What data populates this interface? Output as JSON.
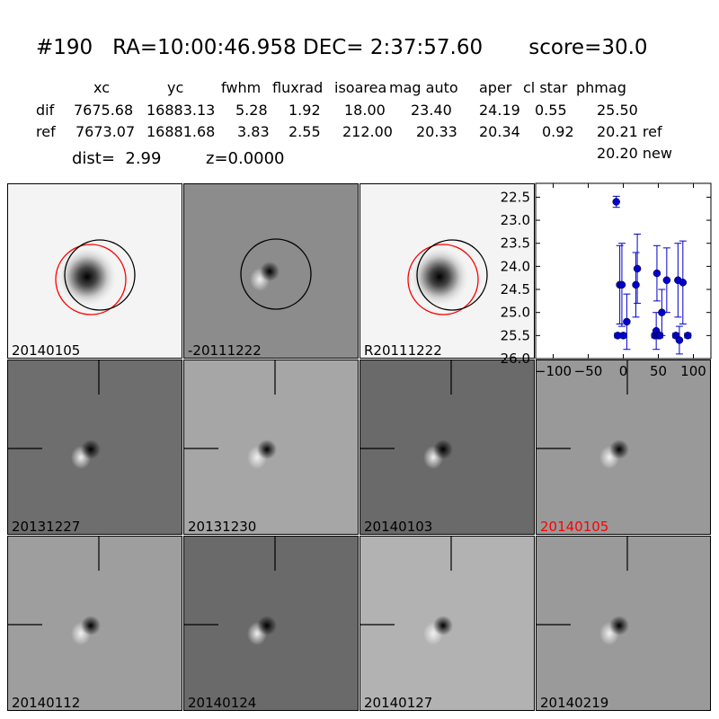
{
  "title": "#190   RA=10:00:46.958 DEC= 2:37:57.60       score=30.0",
  "table": {
    "headers": [
      "xc",
      "yc",
      "fwhm",
      "fluxrad",
      "isoarea",
      "mag auto",
      "aper",
      "cl star",
      "phmag"
    ],
    "rows": [
      {
        "label": "dif",
        "values": [
          "7675.68",
          "16883.13",
          "5.28",
          "1.92",
          "18.00",
          "23.40",
          "24.19",
          "0.55",
          "25.50"
        ]
      },
      {
        "label": "ref",
        "values": [
          "7673.07",
          "16881.68",
          "3.83",
          "2.55",
          "212.00",
          "20.33",
          "20.34",
          "0.92",
          "20.21 ref"
        ]
      }
    ],
    "extra": "20.20 new"
  },
  "dist": "dist=  2.99",
  "z": "z=0.0000",
  "top_panels": [
    {
      "label": "20140105",
      "bg": "#f4f4f4",
      "type": "ref_circles"
    },
    {
      "label": "-20111222",
      "bg": "#8c8c8c",
      "type": "dif_circle"
    },
    {
      "label": "R20111222",
      "bg": "#f4f4f4",
      "type": "ref_circles"
    }
  ],
  "grid_panels": [
    {
      "label": "20131227",
      "bg": "#6e6e6e",
      "label_color": "#000000"
    },
    {
      "label": "20131230",
      "bg": "#a6a6a6",
      "label_color": "#000000"
    },
    {
      "label": "20140103",
      "bg": "#6a6a6a",
      "label_color": "#000000"
    },
    {
      "label": "20140105",
      "bg": "#999999",
      "label_color": "#ff0000"
    },
    {
      "label": "20140112",
      "bg": "#9e9e9e",
      "label_color": "#000000"
    },
    {
      "label": "20140124",
      "bg": "#6a6a6a",
      "label_color": "#000000"
    },
    {
      "label": "20140127",
      "bg": "#b2b2b2",
      "label_color": "#000000"
    },
    {
      "label": "20140219",
      "bg": "#9a9a9a",
      "label_color": "#000000"
    }
  ],
  "colors": {
    "circle_red": "#ff0000",
    "circle_black": "#000000",
    "marker": "#0000cc"
  },
  "chart_data": {
    "type": "scatter",
    "x_ticks": [
      "−100",
      "−50",
      "0",
      "50",
      "100"
    ],
    "y_ticks": [
      "22.5",
      "23.0",
      "23.5",
      "24.0",
      "24.5",
      "25.0",
      "25.5",
      "26.0"
    ],
    "xlim": [
      -125,
      125
    ],
    "ylim": [
      26.0,
      22.2
    ],
    "y_inverted": true,
    "points": [
      {
        "x": -10,
        "y": 22.6,
        "err": 0.12
      },
      {
        "x": -8,
        "y": 25.5,
        "err": 0.05
      },
      {
        "x": -5,
        "y": 24.4,
        "err": 0.85
      },
      {
        "x": -2,
        "y": 24.4,
        "err": 0.9
      },
      {
        "x": 0,
        "y": 25.5,
        "err": 0.05
      },
      {
        "x": 5,
        "y": 25.2,
        "err": 0.6
      },
      {
        "x": 18,
        "y": 24.4,
        "err": 0.7
      },
      {
        "x": 20,
        "y": 24.05,
        "err": 0.75
      },
      {
        "x": 45,
        "y": 25.5,
        "err": 0.05
      },
      {
        "x": 47,
        "y": 25.4,
        "err": 0.4
      },
      {
        "x": 48,
        "y": 24.15,
        "err": 0.6
      },
      {
        "x": 50,
        "y": 25.5,
        "err": 0.05
      },
      {
        "x": 52,
        "y": 25.5,
        "err": 0.05
      },
      {
        "x": 55,
        "y": 25.0,
        "err": 0.5
      },
      {
        "x": 62,
        "y": 24.3,
        "err": 0.7
      },
      {
        "x": 75,
        "y": 25.5,
        "err": 0.05
      },
      {
        "x": 78,
        "y": 24.3,
        "err": 0.8
      },
      {
        "x": 80,
        "y": 25.6,
        "err": 0.3
      },
      {
        "x": 85,
        "y": 24.35,
        "err": 0.9
      },
      {
        "x": 92,
        "y": 25.5,
        "err": 0.05
      }
    ]
  }
}
